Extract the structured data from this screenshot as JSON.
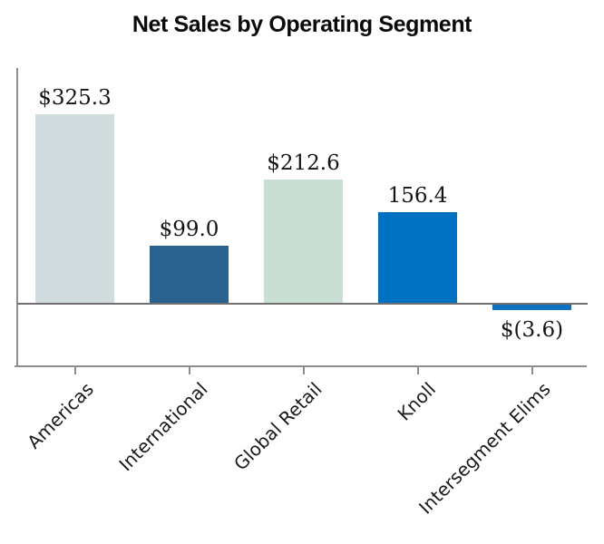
{
  "chart_data": {
    "type": "bar",
    "title": "Net Sales by Operating Segment",
    "categories": [
      "Americas",
      "International",
      "Global Retail",
      "Knoll",
      "Intersegment Elims"
    ],
    "values": [
      325.3,
      99.0,
      212.6,
      156.4,
      -3.6
    ],
    "value_labels": [
      "$325.3",
      "$99.0",
      "$212.6",
      "156.4",
      "$(3.6)"
    ],
    "bar_colors": [
      "#d0dcdd",
      "#2a628f",
      "#c9dfd3",
      "#0070c0",
      "#0f70c0"
    ],
    "xlabel": "",
    "ylabel": "",
    "ylim": [
      -30,
      350
    ],
    "grid": false,
    "legend": false,
    "colors": {
      "axis": "#8f8f8f",
      "zero_line": "#6f6f6f",
      "title_text": "#0a0a0a",
      "label_text": "#141414",
      "background": "#ffffff"
    }
  }
}
